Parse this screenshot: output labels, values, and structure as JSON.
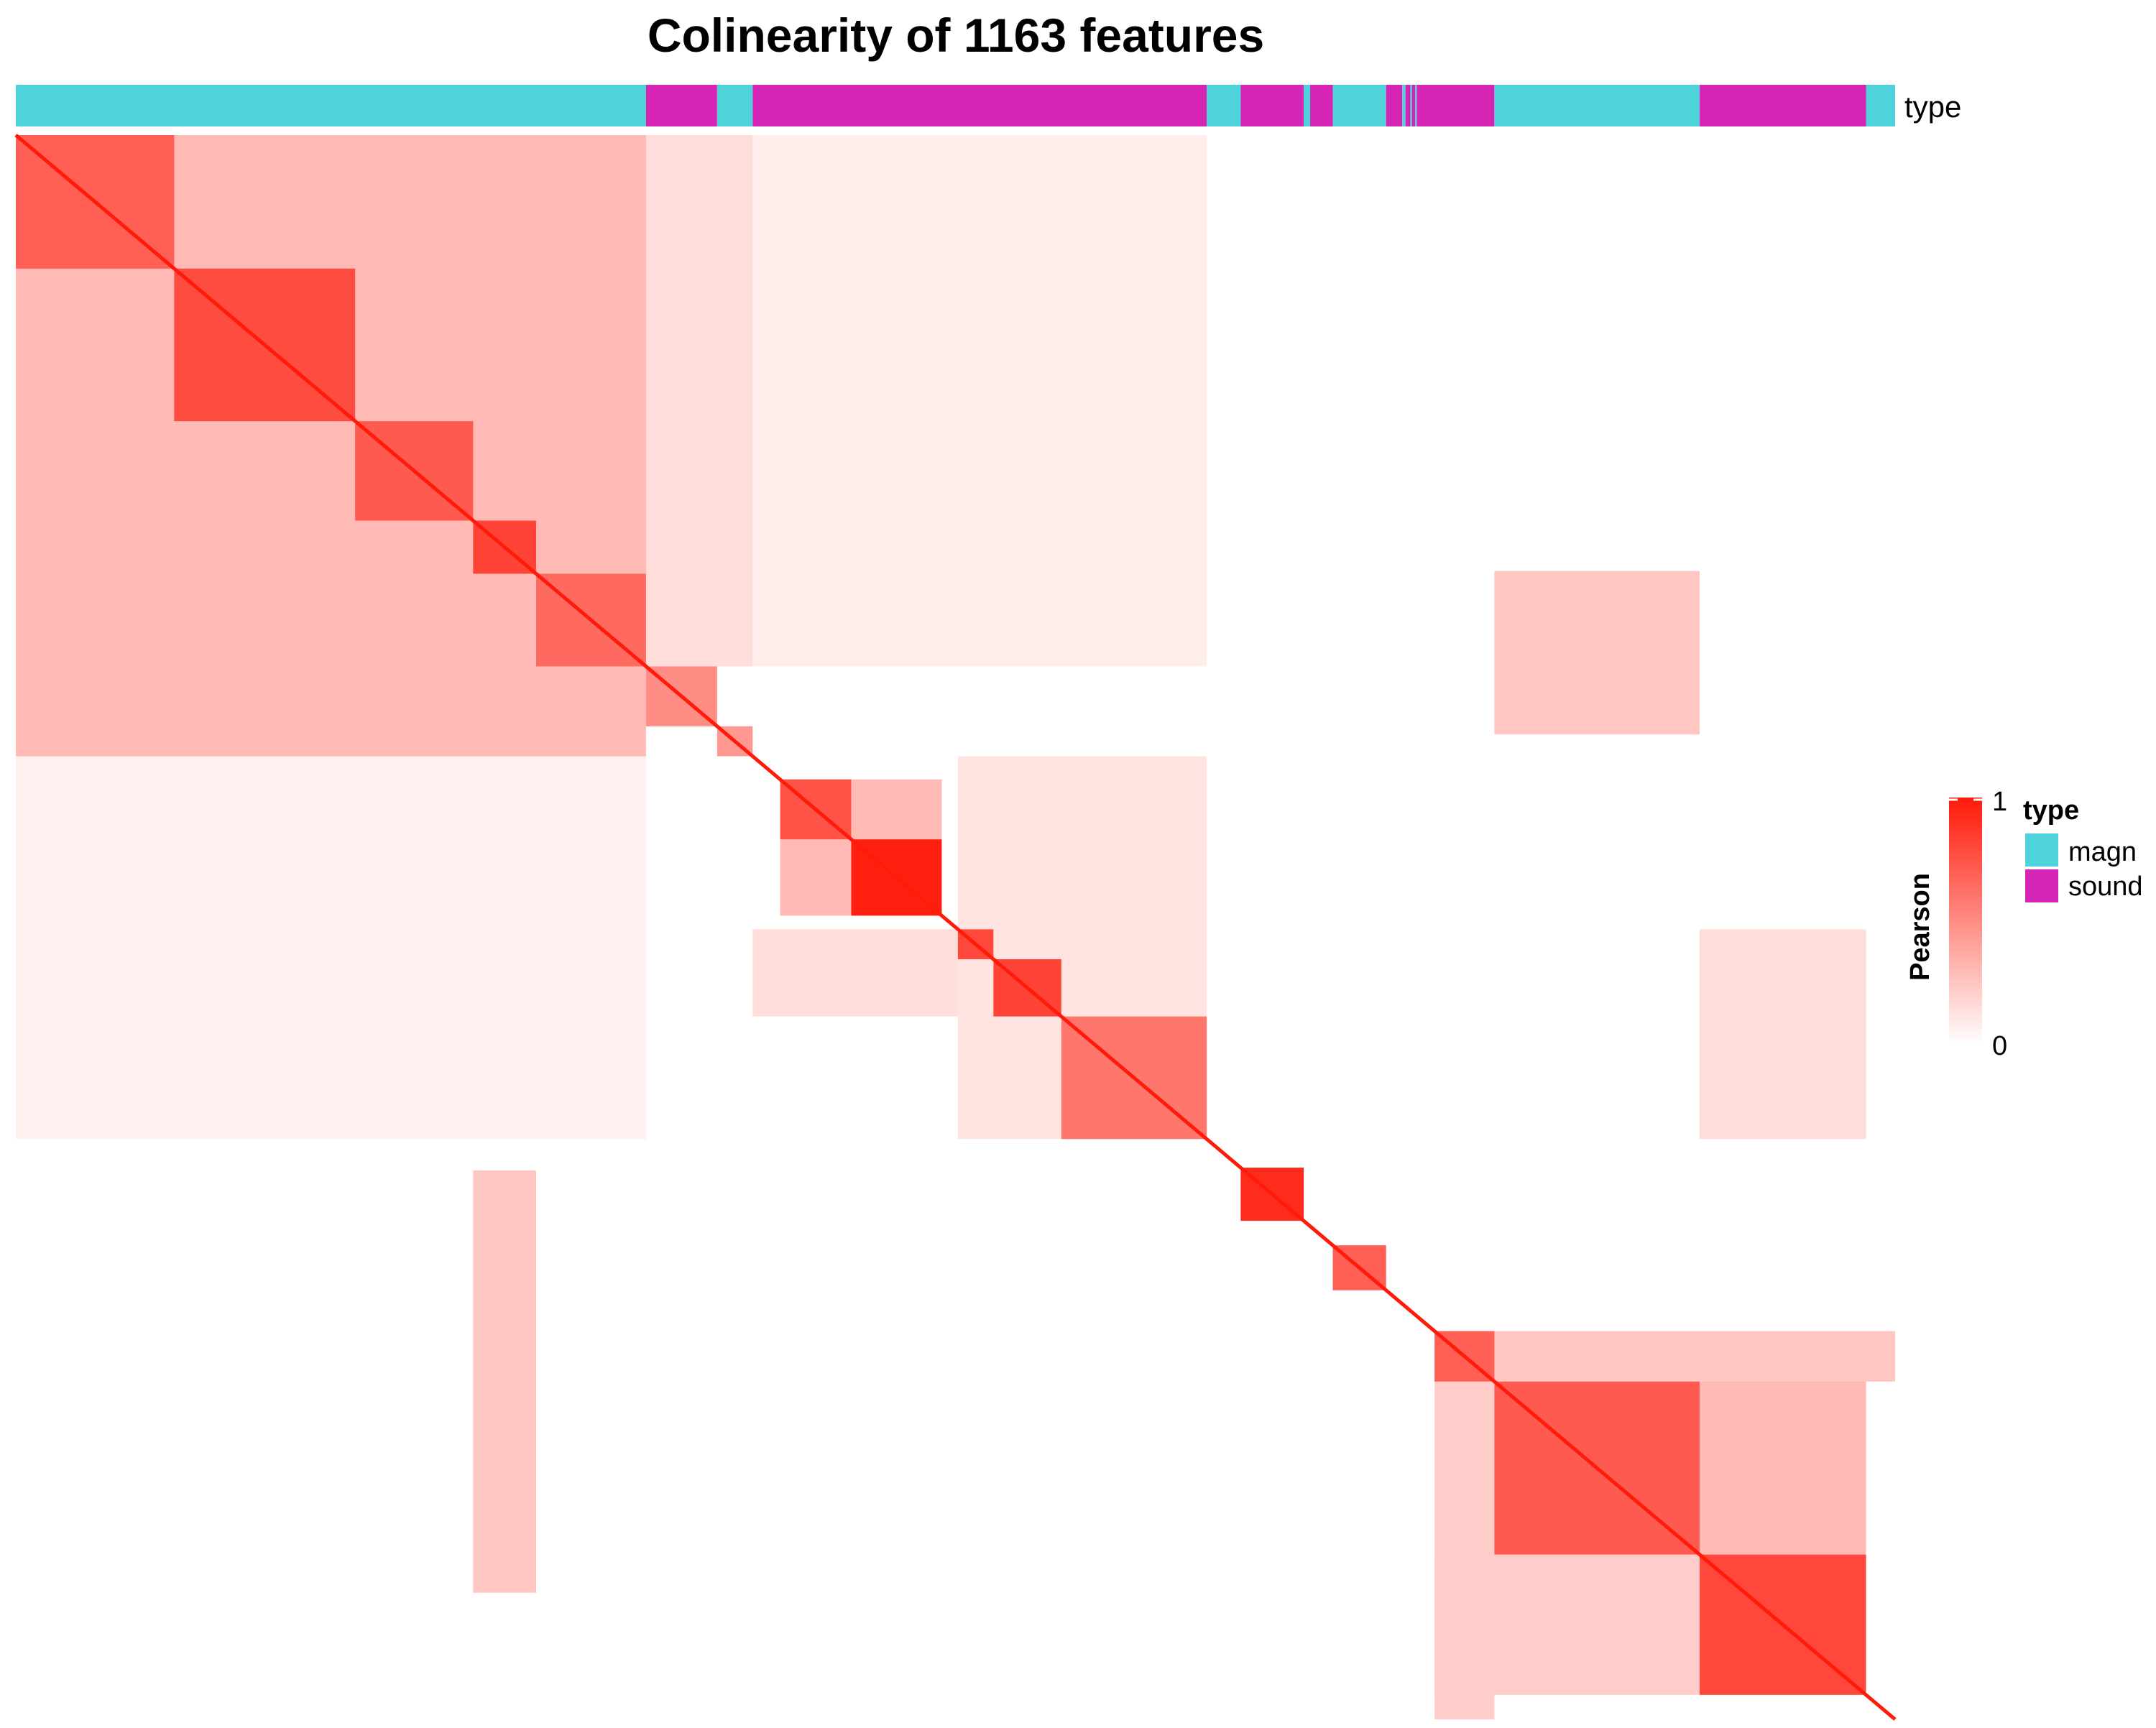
{
  "colors": {
    "magn": "#4fd3db",
    "sound": "#d624b4",
    "high": "#ff1a0a",
    "low": "#ffffff"
  },
  "chart_data": {
    "type": "heatmap",
    "title": "Colinearity of 1163 features",
    "n_features": 1163,
    "value_name": "Pearson",
    "value_range": [
      0,
      1
    ],
    "colorbar": {
      "title": "Pearson",
      "tick_labels": [
        "1",
        "0"
      ],
      "position": "right"
    },
    "annotation_bar": {
      "label": "type",
      "legend_title": "type",
      "categories": [
        "magn",
        "sound"
      ],
      "segments": [
        {
          "type": "magn",
          "start": 0,
          "end": 390
        },
        {
          "type": "sound",
          "start": 390,
          "end": 434
        },
        {
          "type": "magn",
          "start": 434,
          "end": 456
        },
        {
          "type": "sound",
          "start": 456,
          "end": 737
        },
        {
          "type": "magn",
          "start": 737,
          "end": 758
        },
        {
          "type": "sound",
          "start": 758,
          "end": 797
        },
        {
          "type": "magn",
          "start": 797,
          "end": 801
        },
        {
          "type": "sound",
          "start": 801,
          "end": 815
        },
        {
          "type": "magn",
          "start": 815,
          "end": 848
        },
        {
          "type": "sound",
          "start": 848,
          "end": 858
        },
        {
          "type": "magn",
          "start": 858,
          "end": 860
        },
        {
          "type": "sound",
          "start": 860,
          "end": 863
        },
        {
          "type": "magn",
          "start": 863,
          "end": 864
        },
        {
          "type": "sound",
          "start": 864,
          "end": 866
        },
        {
          "type": "magn",
          "start": 866,
          "end": 867
        },
        {
          "type": "sound",
          "start": 867,
          "end": 915
        },
        {
          "type": "magn",
          "start": 915,
          "end": 1042
        },
        {
          "type": "sound",
          "start": 1042,
          "end": 1145
        },
        {
          "type": "magn",
          "start": 1145,
          "end": 1163
        }
      ]
    },
    "diagonal_blocks": [
      {
        "start": 0,
        "end": 98,
        "value": 0.7
      },
      {
        "start": 98,
        "end": 210,
        "value": 0.78
      },
      {
        "start": 210,
        "end": 283,
        "value": 0.72
      },
      {
        "start": 283,
        "end": 322,
        "value": 0.82
      },
      {
        "start": 322,
        "end": 390,
        "value": 0.65
      },
      {
        "start": 390,
        "end": 434,
        "value": 0.5
      },
      {
        "start": 434,
        "end": 456,
        "value": 0.45
      },
      {
        "start": 473,
        "end": 517,
        "value": 0.75
      },
      {
        "start": 517,
        "end": 573,
        "value": 0.98
      },
      {
        "start": 583,
        "end": 605,
        "value": 0.8
      },
      {
        "start": 605,
        "end": 647,
        "value": 0.82
      },
      {
        "start": 647,
        "end": 737,
        "value": 0.6
      },
      {
        "start": 758,
        "end": 797,
        "value": 0.92
      },
      {
        "start": 815,
        "end": 848,
        "value": 0.7
      },
      {
        "start": 878,
        "end": 915,
        "value": 0.7
      },
      {
        "start": 915,
        "end": 1042,
        "value": 0.72
      },
      {
        "start": 1042,
        "end": 1145,
        "value": 0.8
      }
    ],
    "off_diagonal_blocks": [
      {
        "rows": [
          0,
          98
        ],
        "cols": [
          98,
          390
        ],
        "value": 0.45
      },
      {
        "rows": [
          98,
          322
        ],
        "cols": [
          98,
          390
        ],
        "value": 0.5
      },
      {
        "rows": [
          0,
          390
        ],
        "cols": [
          0,
          98
        ],
        "value": 0.45
      },
      {
        "rows": [
          0,
          456
        ],
        "cols": [
          0,
          390
        ],
        "value": 0.3
      },
      {
        "rows": [
          0,
          390
        ],
        "cols": [
          390,
          456
        ],
        "value": 0.15
      },
      {
        "rows": [
          0,
          390
        ],
        "cols": [
          456,
          737
        ],
        "value": 0.08
      },
      {
        "rows": [
          456,
          737
        ],
        "cols": [
          0,
          390
        ],
        "value": 0.07
      },
      {
        "rows": [
          473,
          573
        ],
        "cols": [
          473,
          573
        ],
        "value": 0.3
      },
      {
        "rows": [
          583,
          647
        ],
        "cols": [
          456,
          647
        ],
        "value": 0.15
      },
      {
        "rows": [
          456,
          737
        ],
        "cols": [
          583,
          737
        ],
        "value": 0.12
      },
      {
        "rows": [
          583,
          737
        ],
        "cols": [
          1042,
          1145
        ],
        "value": 0.15
      },
      {
        "rows": [
          878,
          1163
        ],
        "cols": [
          878,
          915
        ],
        "value": 0.22
      },
      {
        "rows": [
          878,
          915
        ],
        "cols": [
          915,
          1163
        ],
        "value": 0.25
      },
      {
        "rows": [
          915,
          1042
        ],
        "cols": [
          1042,
          1145
        ],
        "value": 0.3
      },
      {
        "rows": [
          1042,
          1145
        ],
        "cols": [
          878,
          1042
        ],
        "value": 0.22
      },
      {
        "rows": [
          320,
          440
        ],
        "cols": [
          915,
          1042
        ],
        "value": 0.25
      },
      {
        "rows": [
          760,
          1070
        ],
        "cols": [
          283,
          322
        ],
        "value": 0.25
      }
    ]
  }
}
